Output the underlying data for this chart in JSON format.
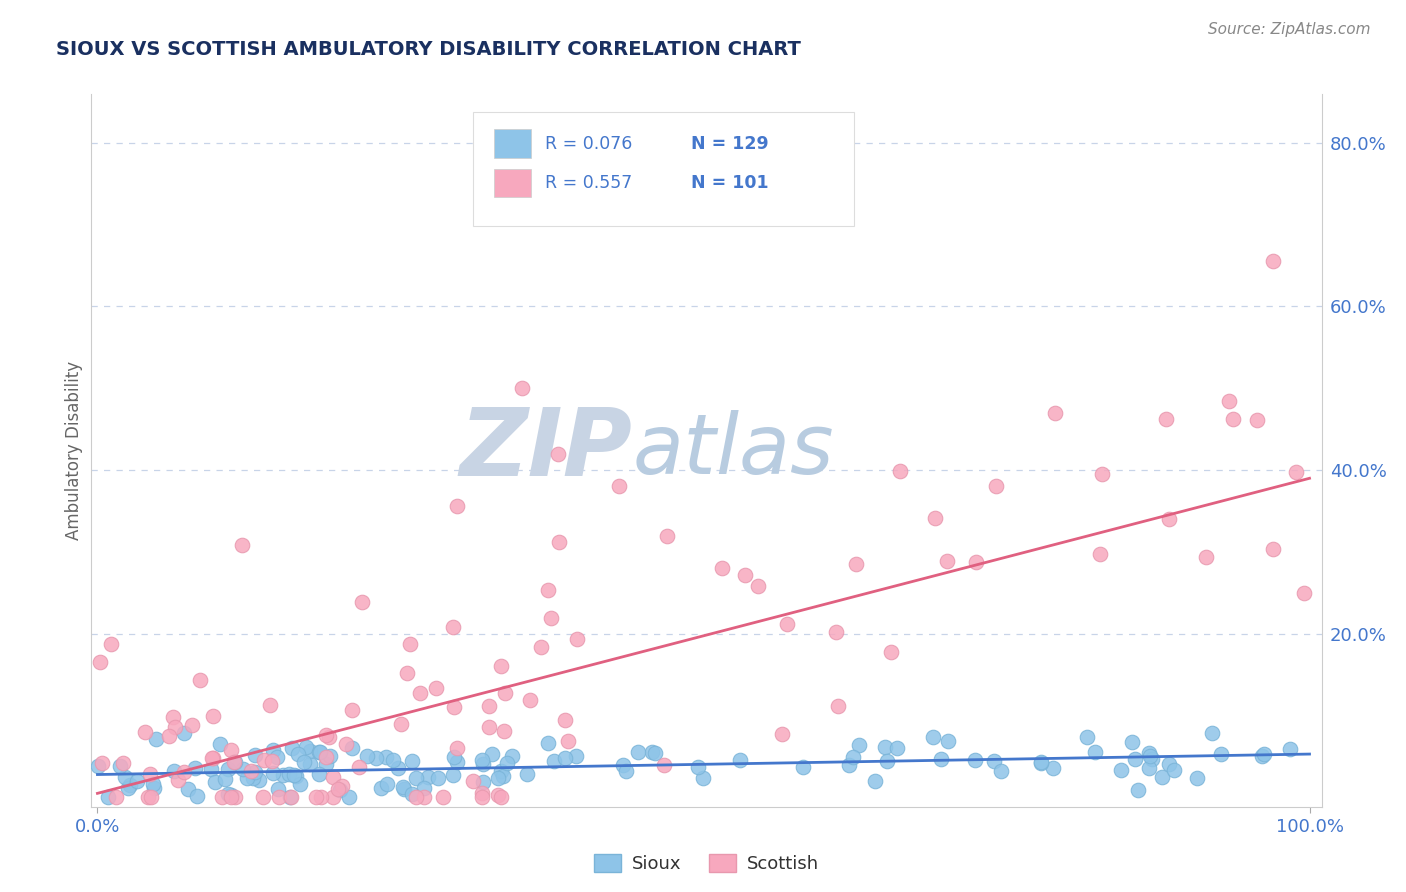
{
  "title": "SIOUX VS SCOTTISH AMBULATORY DISABILITY CORRELATION CHART",
  "source": "Source: ZipAtlas.com",
  "ylabel": "Ambulatory Disability",
  "sioux_R": 0.076,
  "sioux_N": 129,
  "scottish_R": 0.557,
  "scottish_N": 101,
  "sioux_color": "#8ec4e8",
  "scottish_color": "#f7a8be",
  "sioux_edge_color": "#7ab4d8",
  "scottish_edge_color": "#e898ae",
  "sioux_line_color": "#4477cc",
  "scottish_line_color": "#e06080",
  "title_color": "#1a3060",
  "source_color": "#888888",
  "axis_label_color": "#666666",
  "tick_color": "#4477cc",
  "legend_r_color": "#4477cc",
  "background_color": "#ffffff",
  "grid_color": "#c8d4e8",
  "watermark_zip_color": "#c8d4e4",
  "watermark_atlas_color": "#b8cce0",
  "ylim_max": 0.86,
  "sioux_line_slope": 0.025,
  "sioux_line_intercept": 0.028,
  "scottish_line_slope": 0.385,
  "scottish_line_intercept": 0.005
}
